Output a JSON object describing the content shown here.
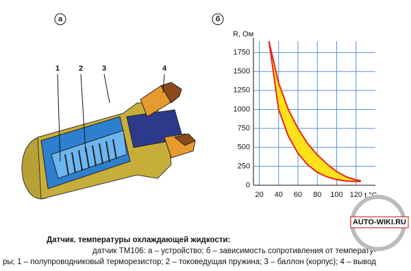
{
  "panel_labels": [
    "а",
    "б"
  ],
  "part_labels": [
    "1",
    "2",
    "3",
    "4"
  ],
  "chart_data": {
    "type": "band",
    "ylabel": "R, Ом",
    "xlabel": "t,°C",
    "x": [
      30,
      40,
      50,
      60,
      70,
      80,
      90,
      100,
      110,
      120,
      125
    ],
    "series": [
      {
        "color": "#e8231e",
        "values": [
          1900,
          1350,
          1000,
          750,
          550,
          400,
          280,
          180,
          110,
          70,
          60
        ]
      },
      {
        "color": "#e8231e",
        "values": [
          1900,
          1000,
          650,
          420,
          270,
          170,
          110,
          75,
          55,
          50,
          50
        ]
      }
    ],
    "fill": "#ffe21a",
    "xlim": [
      14,
      140
    ],
    "ylim": [
      0,
      1900
    ],
    "xticks": [
      20,
      40,
      60,
      80,
      100,
      120
    ],
    "yticks": [
      0,
      250,
      500,
      750,
      1000,
      1250,
      1500,
      1750
    ],
    "grid": true,
    "grid_color": "#5a8fd8"
  },
  "caption": {
    "title": "Датчик.   температуры охлаждающей жидкости:",
    "lines": [
      "датчик ТМ106: а – устройство; б – зависимость сопротивления от температу-",
      "ры; 1 – полупроводниковый терморезистор; 2 – токоведущая пружина; 3 – баллон (корпус); 4 – вывод"
    ]
  },
  "logo": "AUTO-WIKI.RU"
}
